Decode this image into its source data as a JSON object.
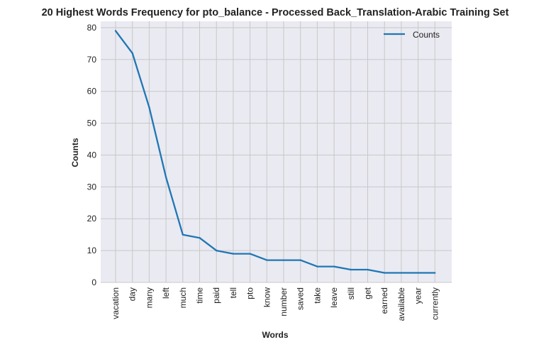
{
  "chart_data": {
    "type": "line",
    "title": "20 Highest Words Frequency for pto_balance - Processed Back_Translation-Arabic Training Set",
    "xlabel": "Words",
    "ylabel": "Counts",
    "categories": [
      "vacation",
      "day",
      "many",
      "left",
      "much",
      "time",
      "paid",
      "tell",
      "pto",
      "know",
      "number",
      "saved",
      "take",
      "leave",
      "still",
      "get",
      "earned",
      "available",
      "year",
      "currently"
    ],
    "series": [
      {
        "name": "Counts",
        "values": [
          79,
          72,
          55,
          33,
          15,
          14,
          10,
          9,
          9,
          7,
          7,
          7,
          5,
          5,
          4,
          4,
          3,
          3,
          3,
          3
        ]
      }
    ],
    "ylim": [
      0,
      82
    ],
    "yticks": [
      0,
      10,
      20,
      30,
      40,
      50,
      60,
      70,
      80
    ],
    "grid": true,
    "legend_position": "top-right",
    "colors": {
      "line": "#1f77b4",
      "plot_background": "#eaeaf2",
      "grid": "#c8c8c8"
    }
  }
}
